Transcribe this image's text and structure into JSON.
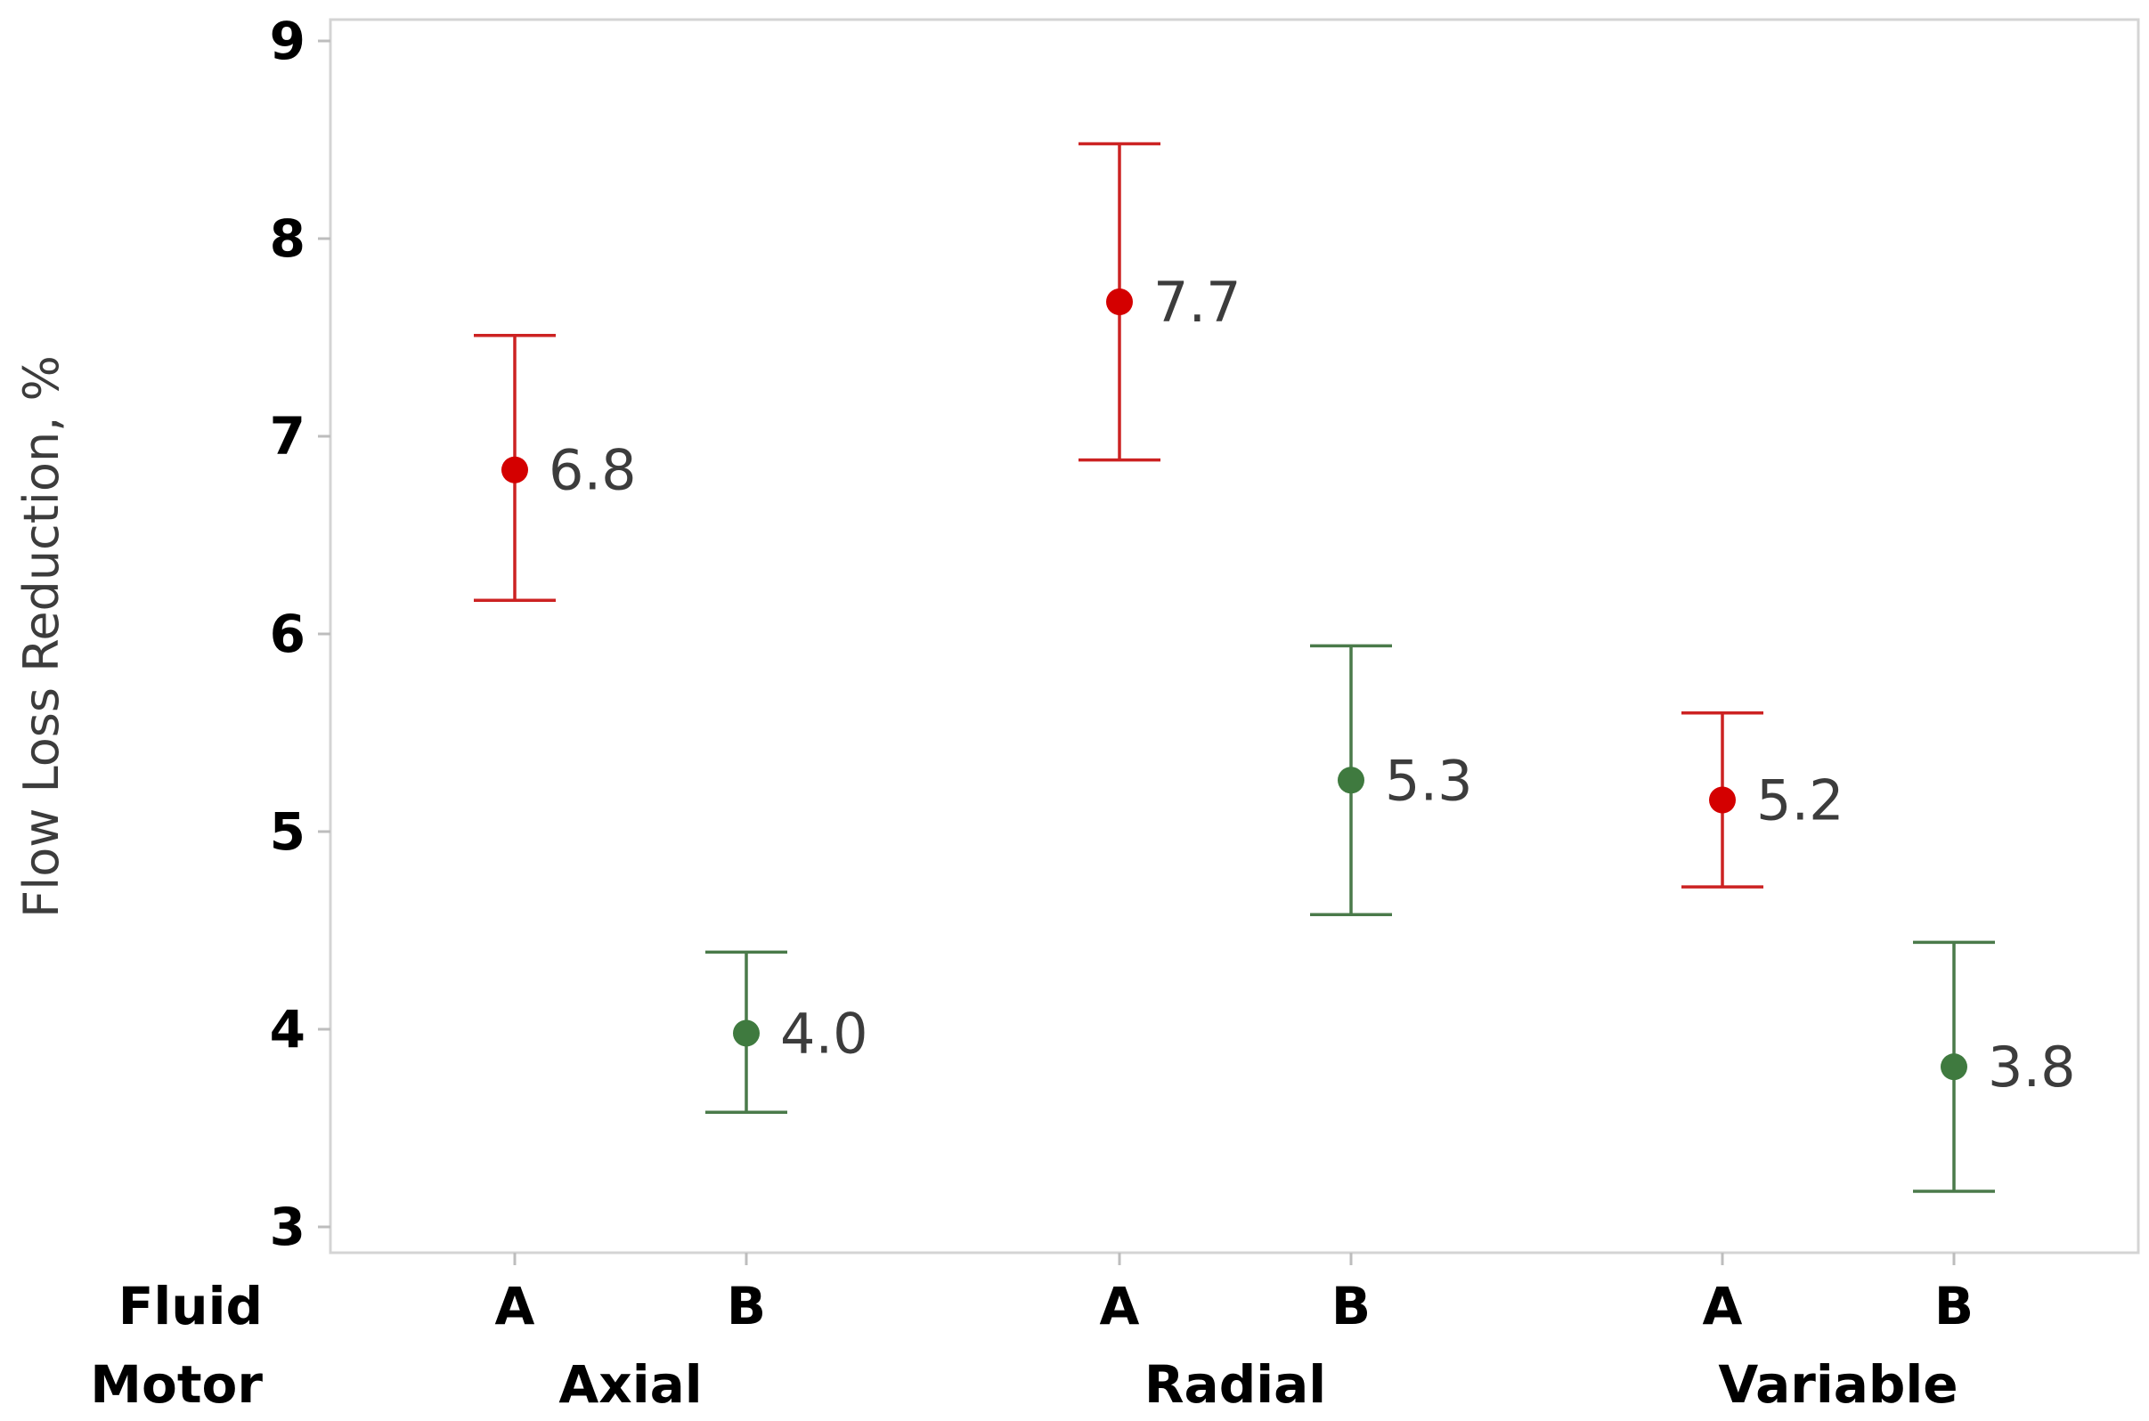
{
  "chart_data": {
    "type": "interval",
    "title": "",
    "xlabel": "",
    "ylabel": "Flow Loss Reduction, %",
    "ylim": [
      2.85,
      9.1
    ],
    "yticks": [
      3,
      4,
      5,
      6,
      7,
      8,
      9
    ],
    "row_labels": {
      "fluid": "Fluid",
      "motor": "Motor"
    },
    "groups": [
      {
        "motor": "Axial",
        "points": [
          {
            "fluid": "A",
            "mean": 6.83,
            "lower": 6.17,
            "upper": 7.51,
            "label": "6.8"
          },
          {
            "fluid": "B",
            "mean": 3.98,
            "lower": 3.58,
            "upper": 4.39,
            "label": "4.0"
          }
        ]
      },
      {
        "motor": "Radial",
        "points": [
          {
            "fluid": "A",
            "mean": 7.68,
            "lower": 6.88,
            "upper": 8.48,
            "label": "7.7"
          },
          {
            "fluid": "B",
            "mean": 5.26,
            "lower": 4.58,
            "upper": 5.94,
            "label": "5.3"
          }
        ]
      },
      {
        "motor": "Variable",
        "points": [
          {
            "fluid": "A",
            "mean": 5.16,
            "lower": 4.72,
            "upper": 5.6,
            "label": "5.2"
          },
          {
            "fluid": "B",
            "mean": 3.81,
            "lower": 3.18,
            "upper": 4.44,
            "label": "3.8"
          }
        ]
      }
    ],
    "colors": {
      "A": "#cc2222",
      "B": "#4a7a4a",
      "A_marker": "#d40000",
      "B_marker": "#3f7a3f"
    }
  }
}
